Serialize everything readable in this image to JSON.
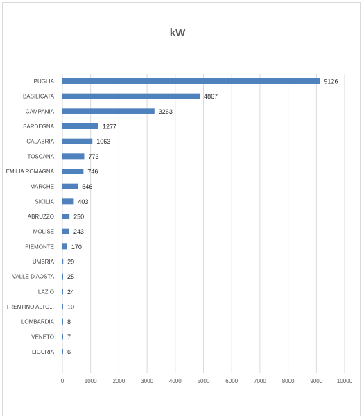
{
  "chart_data": {
    "type": "bar",
    "orientation": "horizontal",
    "title": "kW",
    "xlabel": "",
    "ylabel": "",
    "categories": [
      "PUGLIA",
      "BASILICATA",
      "CAMPANIA",
      "SARDEGNA",
      "CALABRIA",
      "TOSCANA",
      "EMILIA ROMAGNA",
      "MARCHE",
      "SICILIA",
      "ABRUZZO",
      "MOLISE",
      "PIEMONTE",
      "UMBRIA",
      "VALLE D'AOSTA",
      "LAZIO",
      "TRENTINO ALTO...",
      "LOMBARDIA",
      "VENETO",
      "LIGURIA"
    ],
    "values": [
      9126,
      4867,
      3263,
      1277,
      1063,
      773,
      746,
      546,
      403,
      250,
      243,
      170,
      29,
      25,
      24,
      10,
      8,
      7,
      6
    ],
    "xlim": [
      0,
      10000
    ],
    "xticks": [
      0,
      1000,
      2000,
      3000,
      4000,
      5000,
      6000,
      7000,
      8000,
      9000,
      10000
    ],
    "grid": true,
    "bar_color": "#4f81bd",
    "legend": "none"
  }
}
